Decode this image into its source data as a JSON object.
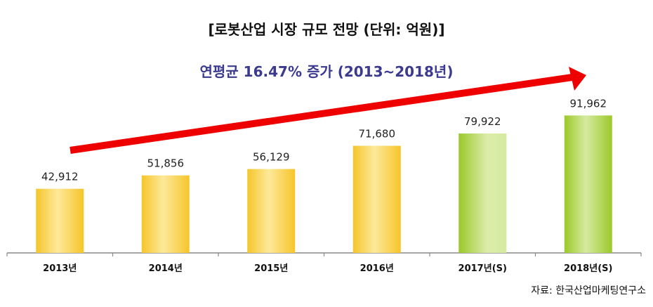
{
  "chart_data": {
    "type": "bar",
    "title": "[로봇산업 시장 규모 전망 (단위: 억원)]",
    "annotation": "연평균 16.47% 증가 (2013~2018년)",
    "source": "자료: 한국산업마케팅연구소",
    "categories": [
      "2013년",
      "2014년",
      "2015년",
      "2016년",
      "2017년(S)",
      "2018년(S)"
    ],
    "values": [
      42912,
      51856,
      56129,
      71680,
      79922,
      91962
    ],
    "value_labels": [
      "42,912",
      "51,856",
      "56,129",
      "71,680",
      "79,922",
      "91,962"
    ],
    "bar_colors": [
      "#f5c62a",
      "#f5c62a",
      "#f5c62a",
      "#f5c62a",
      "#9cc92a",
      "#9cc92a"
    ],
    "trend_arrow_color": "#ee0000",
    "ylim": [
      0,
      110000
    ],
    "grid": false,
    "y_axis_visible": false
  }
}
